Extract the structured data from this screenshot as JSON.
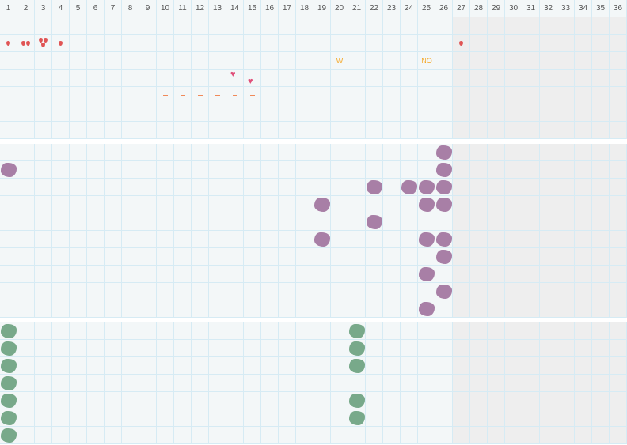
{
  "days": [
    "1",
    "2",
    "3",
    "4",
    "5",
    "6",
    "7",
    "8",
    "9",
    "10",
    "11",
    "12",
    "13",
    "14",
    "15",
    "16",
    "17",
    "18",
    "19",
    "20",
    "21",
    "22",
    "23",
    "24",
    "25",
    "26",
    "27",
    "28",
    "29",
    "30",
    "31",
    "32",
    "33",
    "34",
    "35",
    "36"
  ],
  "current_day": 26,
  "colors": {
    "drop": "#e05555",
    "heart": "#e0507a",
    "dash": "#f08a5a",
    "text_mark": "#f5a623",
    "purple": "#a87fa6",
    "green": "#78a98a",
    "grid": "#d6ebf4",
    "cell": "#f3f7f8",
    "future": "#eeeeee"
  },
  "sections": [
    {
      "rows": 7,
      "marks": [
        {
          "type": "drop",
          "day": 1,
          "row": 1,
          "count": 1
        },
        {
          "type": "drop",
          "day": 2,
          "row": 1,
          "count": 2
        },
        {
          "type": "drop",
          "day": 3,
          "row": 1,
          "count": 3
        },
        {
          "type": "drop",
          "day": 4,
          "row": 1,
          "count": 1
        },
        {
          "type": "drop",
          "day": 27,
          "row": 1,
          "count": 1
        },
        {
          "type": "text",
          "day": 20,
          "row": 2,
          "label": "W"
        },
        {
          "type": "text",
          "day": 25,
          "row": 2,
          "label": "NO"
        },
        {
          "type": "heart",
          "day": 14,
          "row": 3,
          "offset": "top"
        },
        {
          "type": "heart",
          "day": 15,
          "row": 3,
          "offset": "bottom"
        },
        {
          "type": "dash",
          "day": 10,
          "row": 4
        },
        {
          "type": "dash",
          "day": 11,
          "row": 4
        },
        {
          "type": "dash",
          "day": 12,
          "row": 4
        },
        {
          "type": "dash",
          "day": 13,
          "row": 4
        },
        {
          "type": "dash",
          "day": 14,
          "row": 4
        },
        {
          "type": "dash",
          "day": 15,
          "row": 4
        }
      ]
    },
    {
      "rows": 10,
      "blob_color": "purple",
      "blobs": [
        [
          26,
          0
        ],
        [
          1,
          1
        ],
        [
          26,
          1
        ],
        [
          22,
          2
        ],
        [
          24,
          2
        ],
        [
          25,
          2
        ],
        [
          26,
          2
        ],
        [
          19,
          3
        ],
        [
          25,
          3
        ],
        [
          26,
          3
        ],
        [
          22,
          4
        ],
        [
          19,
          5
        ],
        [
          25,
          5
        ],
        [
          26,
          5
        ],
        [
          26,
          6
        ],
        [
          25,
          7
        ],
        [
          26,
          8
        ],
        [
          25,
          9
        ]
      ]
    },
    {
      "rows": 7,
      "blob_color": "green",
      "blobs": [
        [
          1,
          0
        ],
        [
          21,
          0
        ],
        [
          1,
          1
        ],
        [
          21,
          1
        ],
        [
          1,
          2
        ],
        [
          21,
          2
        ],
        [
          1,
          3
        ],
        [
          1,
          4
        ],
        [
          21,
          4
        ],
        [
          1,
          5
        ],
        [
          21,
          5
        ],
        [
          1,
          6
        ]
      ]
    }
  ]
}
